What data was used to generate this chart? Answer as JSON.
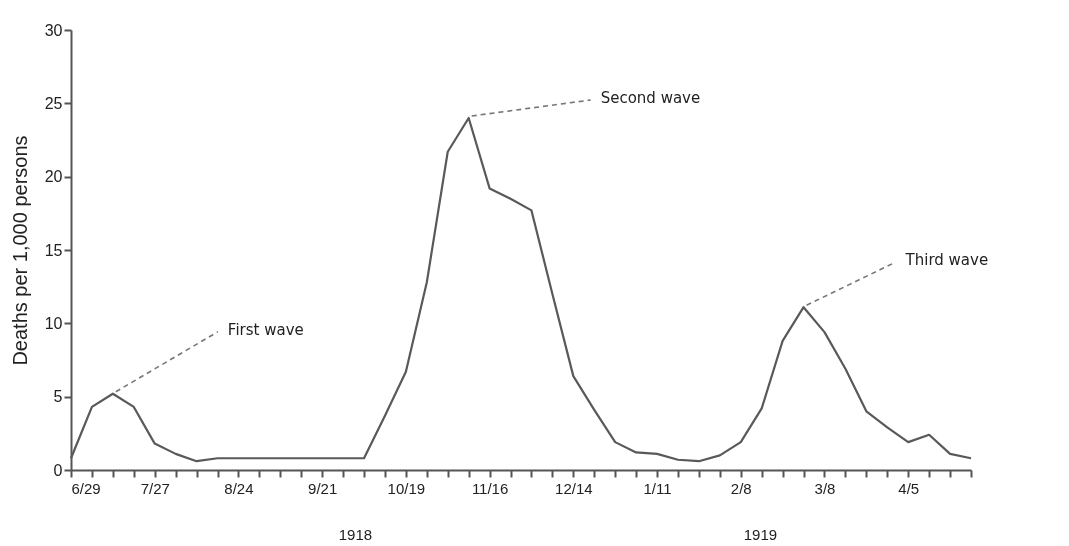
{
  "chart_data": {
    "type": "line",
    "ylabel": "Deaths per 1,000 persons",
    "x": [
      "1918-06-29",
      "1918-07-06",
      "1918-07-13",
      "1918-07-20",
      "1918-07-27",
      "1918-08-03",
      "1918-08-10",
      "1918-08-17",
      "1918-08-24",
      "1918-08-31",
      "1918-09-07",
      "1918-09-14",
      "1918-09-21",
      "1918-09-28",
      "1918-10-05",
      "1918-10-12",
      "1918-10-19",
      "1918-10-26",
      "1918-11-02",
      "1918-11-09",
      "1918-11-16",
      "1918-11-23",
      "1918-11-30",
      "1918-12-07",
      "1918-12-14",
      "1918-12-21",
      "1918-12-28",
      "1919-01-04",
      "1919-01-11",
      "1919-01-18",
      "1919-01-25",
      "1919-02-01",
      "1919-02-08",
      "1919-02-15",
      "1919-02-22",
      "1919-03-01",
      "1919-03-08",
      "1919-03-15",
      "1919-03-22",
      "1919-03-29",
      "1919-04-05",
      "1919-04-12",
      "1919-04-19",
      "1919-04-26"
    ],
    "series": [
      {
        "color": "#595959",
        "values": [
          0.8,
          4.3,
          5.2,
          4.3,
          1.8,
          1.1,
          0.6,
          0.8,
          0.8,
          0.8,
          0.8,
          0.8,
          0.8,
          0.8,
          0.8,
          3.7,
          6.7,
          12.8,
          21.7,
          24.0,
          19.2,
          18.5,
          17.7,
          12.0,
          6.4,
          4.1,
          1.9,
          1.2,
          1.1,
          0.7,
          0.6,
          1.0,
          1.9,
          4.2,
          8.8,
          11.1,
          9.4,
          6.9,
          4.0,
          2.9,
          1.9,
          2.4,
          1.1,
          0.8
        ]
      }
    ],
    "xlim": [
      "1918-06-29",
      "1919-04-26"
    ],
    "xticks": [
      {
        "value": "1918-06-29",
        "label": "6/29"
      },
      {
        "value": "1918-07-06",
        "label": null
      },
      {
        "value": "1918-07-13",
        "label": null
      },
      {
        "value": "1918-07-20",
        "label": null
      },
      {
        "value": "1918-07-27",
        "label": "7/27"
      },
      {
        "value": "1918-08-03",
        "label": null
      },
      {
        "value": "1918-08-10",
        "label": null
      },
      {
        "value": "1918-08-17",
        "label": null
      },
      {
        "value": "1918-08-24",
        "label": "8/24"
      },
      {
        "value": "1918-08-31",
        "label": null
      },
      {
        "value": "1918-09-07",
        "label": null
      },
      {
        "value": "1918-09-14",
        "label": null
      },
      {
        "value": "1918-09-21",
        "label": "9/21"
      },
      {
        "value": "1918-09-28",
        "label": null
      },
      {
        "value": "1918-10-05",
        "label": null
      },
      {
        "value": "1918-10-12",
        "label": null
      },
      {
        "value": "1918-10-19",
        "label": "10/19"
      },
      {
        "value": "1918-10-26",
        "label": null
      },
      {
        "value": "1918-11-02",
        "label": null
      },
      {
        "value": "1918-11-09",
        "label": null
      },
      {
        "value": "1918-11-16",
        "label": "11/16"
      },
      {
        "value": "1918-11-23",
        "label": null
      },
      {
        "value": "1918-11-30",
        "label": null
      },
      {
        "value": "1918-12-07",
        "label": null
      },
      {
        "value": "1918-12-14",
        "label": "12/14"
      },
      {
        "value": "1918-12-21",
        "label": null
      },
      {
        "value": "1918-12-28",
        "label": null
      },
      {
        "value": "1919-01-04",
        "label": null
      },
      {
        "value": "1919-01-11",
        "label": "1/11"
      },
      {
        "value": "1919-01-18",
        "label": null
      },
      {
        "value": "1919-01-25",
        "label": null
      },
      {
        "value": "1919-02-01",
        "label": null
      },
      {
        "value": "1919-02-08",
        "label": "2/8"
      },
      {
        "value": "1919-02-15",
        "label": null
      },
      {
        "value": "1919-02-22",
        "label": null
      },
      {
        "value": "1919-03-01",
        "label": null
      },
      {
        "value": "1919-03-08",
        "label": "3/8"
      },
      {
        "value": "1919-03-15",
        "label": null
      },
      {
        "value": "1919-03-22",
        "label": null
      },
      {
        "value": "1919-03-29",
        "label": null
      },
      {
        "value": "1919-04-05",
        "label": "4/5"
      },
      {
        "value": "1919-04-12",
        "label": null
      },
      {
        "value": "1919-04-19",
        "label": null
      },
      {
        "value": "1919-04-26",
        "label": null
      }
    ],
    "ylim": [
      0,
      30
    ],
    "yticks": [
      0,
      5,
      10,
      15,
      20,
      25,
      30
    ],
    "grid": false,
    "marker": "none",
    "line_style": "solid",
    "annotations": [
      {
        "text": "First wave",
        "x": "1918-07-13",
        "y": 5.2
      },
      {
        "text": "Second wave",
        "x": "1918-11-09",
        "y": 24.0
      },
      {
        "text": "Third wave",
        "x": "1919-03-01",
        "y": 11.1
      },
      "1918",
      "1919"
    ]
  }
}
